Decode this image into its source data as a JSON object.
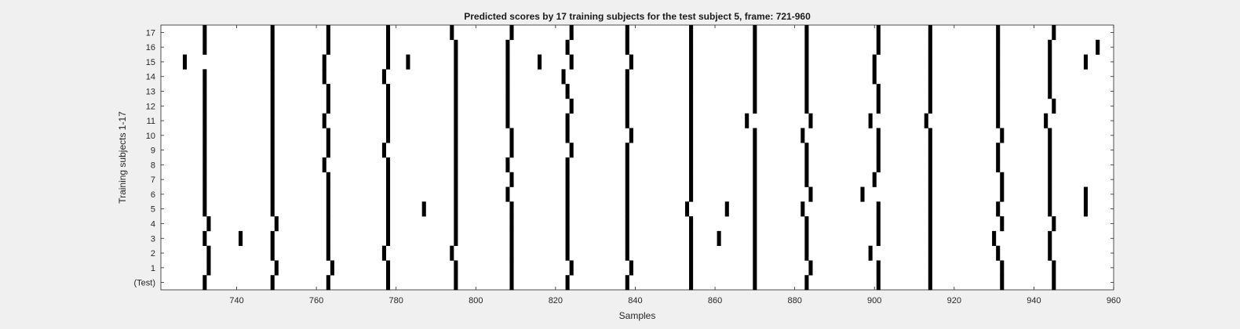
{
  "chart_data": {
    "type": "raster",
    "title": "Predicted scores by 17 training subjects for the test subject 5, frame: 721-960",
    "xlabel": "Samples",
    "ylabel": "Training subjects 1-17",
    "xlim": [
      721,
      960
    ],
    "xticks": [
      740,
      760,
      780,
      800,
      820,
      840,
      860,
      880,
      900,
      920,
      940,
      960
    ],
    "grid": false,
    "rows": [
      {
        "label": "(Test)",
        "events": [
          732,
          749,
          763,
          778,
          795,
          809,
          823,
          838,
          854,
          870,
          883,
          901,
          914,
          932,
          945
        ]
      },
      {
        "label": "1",
        "events": [
          733,
          750,
          764,
          778,
          795,
          809,
          824,
          839,
          854,
          870,
          884,
          901,
          914,
          932,
          945
        ]
      },
      {
        "label": "2",
        "events": [
          733,
          749,
          763,
          777,
          794,
          809,
          823,
          838,
          854,
          870,
          883,
          899,
          914,
          931,
          944
        ]
      },
      {
        "label": "3",
        "events": [
          732,
          741,
          749,
          763,
          778,
          795,
          809,
          823,
          838,
          854,
          861,
          870,
          883,
          901,
          914,
          930,
          944
        ]
      },
      {
        "label": "4",
        "events": [
          733,
          750,
          763,
          778,
          795,
          809,
          823,
          838,
          854,
          870,
          883,
          901,
          914,
          932,
          945
        ]
      },
      {
        "label": "5",
        "events": [
          732,
          749,
          763,
          778,
          787,
          795,
          809,
          823,
          838,
          853,
          863,
          870,
          882,
          901,
          914,
          931,
          944,
          953
        ]
      },
      {
        "label": "6",
        "events": [
          732,
          749,
          763,
          778,
          795,
          808,
          823,
          838,
          854,
          870,
          884,
          897,
          914,
          932,
          944,
          953
        ]
      },
      {
        "label": "7",
        "events": [
          732,
          749,
          763,
          778,
          795,
          809,
          823,
          838,
          854,
          870,
          883,
          900,
          914,
          932,
          944
        ]
      },
      {
        "label": "8",
        "events": [
          732,
          749,
          762,
          778,
          795,
          808,
          823,
          838,
          854,
          870,
          883,
          901,
          914,
          931,
          944
        ]
      },
      {
        "label": "9",
        "events": [
          732,
          749,
          763,
          777,
          795,
          809,
          824,
          838,
          854,
          870,
          883,
          901,
          914,
          931,
          944
        ]
      },
      {
        "label": "10",
        "events": [
          732,
          749,
          763,
          778,
          795,
          809,
          823,
          839,
          854,
          870,
          882,
          901,
          914,
          932,
          944
        ]
      },
      {
        "label": "11",
        "events": [
          732,
          749,
          762,
          778,
          795,
          808,
          823,
          838,
          854,
          868,
          884,
          899,
          913,
          931,
          943
        ]
      },
      {
        "label": "12",
        "events": [
          732,
          749,
          763,
          778,
          795,
          808,
          824,
          838,
          854,
          870,
          883,
          901,
          914,
          931,
          945
        ]
      },
      {
        "label": "13",
        "events": [
          732,
          749,
          763,
          778,
          795,
          808,
          823,
          838,
          854,
          870,
          883,
          901,
          914,
          931,
          944
        ]
      },
      {
        "label": "14",
        "events": [
          732,
          749,
          762,
          777,
          795,
          808,
          822,
          838,
          854,
          870,
          883,
          900,
          914,
          931,
          944
        ]
      },
      {
        "label": "15",
        "events": [
          727,
          749,
          762,
          778,
          783,
          795,
          808,
          816,
          824,
          839,
          854,
          870,
          883,
          900,
          914,
          931,
          944,
          953
        ]
      },
      {
        "label": "16",
        "events": [
          732,
          749,
          763,
          778,
          795,
          808,
          823,
          838,
          854,
          870,
          883,
          901,
          914,
          931,
          944,
          956
        ]
      },
      {
        "label": "17",
        "events": [
          732,
          749,
          763,
          778,
          794,
          809,
          824,
          838,
          854,
          870,
          883,
          901,
          914,
          931,
          945
        ]
      }
    ]
  }
}
